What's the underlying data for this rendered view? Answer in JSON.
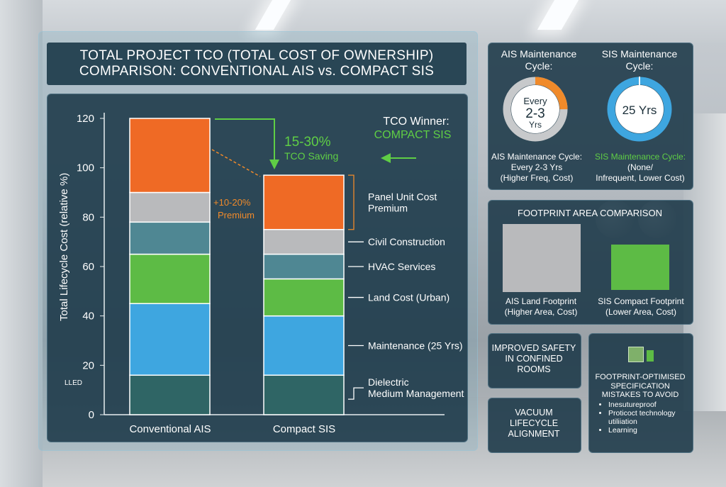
{
  "title_line1": "TOTAL PROJECT TCO (TOTAL COST OF OWNERSHIP)",
  "title_line2": "COMPARISON: CONVENTIONAL AIS vs. COMPACT SIS",
  "colors": {
    "panel_unit_cost_premium": "#ef6a25",
    "civil_construction": "#b9babc",
    "hvac_services": "#4f8793",
    "land_cost_urban": "#5dbb45",
    "maintenance_25yrs": "#3ea6e0",
    "dielectric_medium_management": "#2f6565",
    "accent_green": "#5fce45",
    "accent_orange": "#f08a2a"
  },
  "chart_data": {
    "type": "bar",
    "stacked": true,
    "categories": [
      "Conventional AIS",
      "Compact SIS"
    ],
    "ylabel": "Total Lifecycle Cost (relative %)",
    "ylim": [
      0,
      120
    ],
    "yticks": [
      "0",
      "20",
      "40",
      "60",
      "80",
      "100",
      "120"
    ],
    "series": [
      {
        "name": "Dielectric Medium Management",
        "values": [
          16,
          16
        ]
      },
      {
        "name": "Maintenance (25 Yrs)",
        "values": [
          29,
          24
        ]
      },
      {
        "name": "Land Cost (Urban)",
        "values": [
          20,
          15
        ]
      },
      {
        "name": "HVAC Services",
        "values": [
          13,
          10
        ]
      },
      {
        "name": "Civil Construction",
        "values": [
          12,
          10
        ]
      },
      {
        "name": "Panel Unit Cost Premium",
        "values": [
          30,
          22
        ]
      }
    ],
    "legend_position": "right",
    "stray_label": "LLED",
    "annotations": {
      "saving_value": "15-30%",
      "saving_label": "TCO Saving",
      "premium_value": "+10-20%",
      "premium_label": "Premium",
      "winner_label": "TCO Winner:",
      "winner_value": "COMPACT SIS"
    }
  },
  "ais_cycle": {
    "title": "AIS Maintenance Cycle:",
    "ring_line1": "Every",
    "ring_line2": "2-3",
    "ring_line3": "Yrs",
    "ring_fraction": 0.25,
    "caption_line1": "AIS Maintenance Cycle:",
    "caption_line2": "Every 2-3 Yrs",
    "caption_line3": "(Higher Freq, Cost)"
  },
  "sis_cycle": {
    "title": "SIS Maintenance Cycle:",
    "ring_text": "25 Yrs",
    "ring_fraction": 1.0,
    "caption_line1": "SIS Maintenance Cycle:",
    "caption_line2": "(None/",
    "caption_line3": "Infrequent, Lower Cost)"
  },
  "footprint": {
    "title": "FOOTPRINT AREA COMPARISON",
    "ais_line1": "AIS Land Footprint",
    "ais_line2": "(Higher Area, Cost)",
    "sis_line1": "SIS Compact Footprint",
    "sis_line2": "(Lower Area, Cost)"
  },
  "safety": {
    "line1": "IMPROVED SAFETY",
    "line2": "IN CONFINED",
    "line3": "ROOMS"
  },
  "vacuum": {
    "line1": "VACUUM",
    "line2": "LIFECYCLE",
    "line3": "ALIGNMENT"
  },
  "mistakes": {
    "line1": "FOOTPRINT-OPTIMISED",
    "line2": "SPECIFICATION",
    "line3": "MISTAKES TO AVOID",
    "items": [
      "Inesutureproof",
      "Proticoct technology utiliiation",
      "Learning"
    ]
  }
}
